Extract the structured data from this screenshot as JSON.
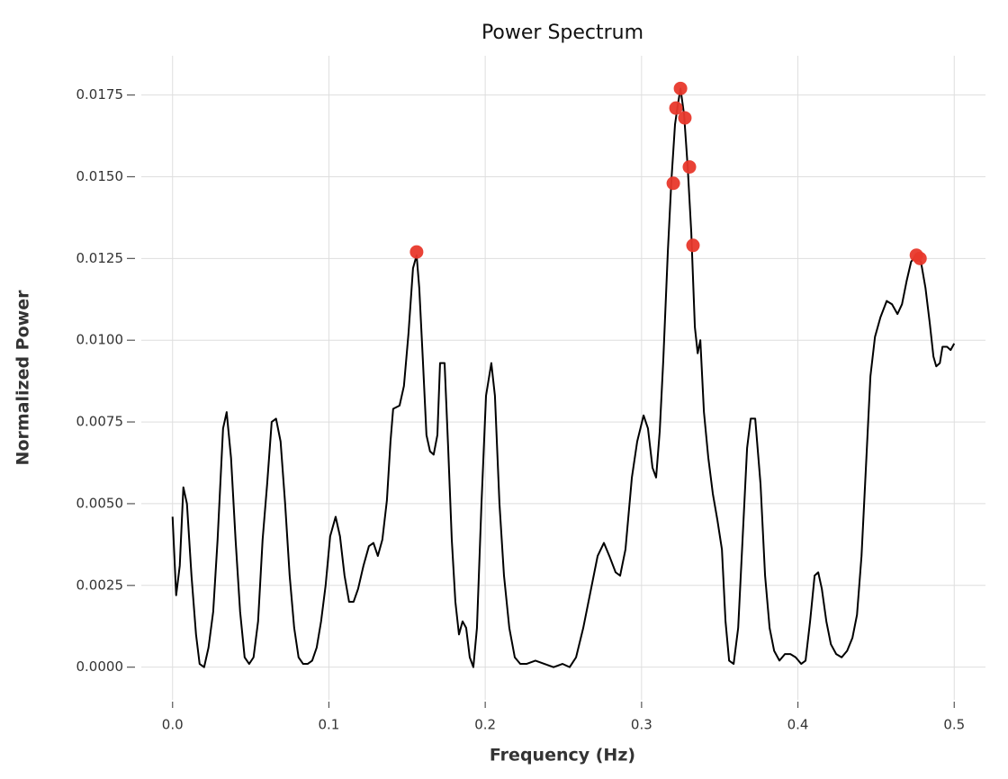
{
  "chart_data": {
    "type": "line",
    "title": "Power Spectrum",
    "xlabel": "Frequency (Hz)",
    "ylabel": "Normalized Power",
    "xlim": [
      -0.02,
      0.52
    ],
    "ylim": [
      -0.001,
      0.0187
    ],
    "xticks": [
      {
        "value": 0,
        "label": "0.0"
      },
      0.1,
      0.2,
      0.3,
      0.4,
      0.5
    ],
    "yticks": [
      {
        "value": 0,
        "label": "0.0000"
      },
      0.0025,
      {
        "value": 0.005,
        "label": "0.0050"
      },
      0.0075,
      {
        "value": 0.01,
        "label": "0.0100"
      },
      0.0125,
      {
        "value": 0.015,
        "label": "0.0150"
      },
      0.0175
    ],
    "grid": true,
    "series": [
      {
        "type": "line",
        "color": "#000000",
        "x": [
          0,
          0.0023,
          0.0046,
          0.0069,
          0.0092,
          0.0121,
          0.015,
          0.0173,
          0.0202,
          0.023,
          0.026,
          0.0288,
          0.0323,
          0.0346,
          0.0374,
          0.0403,
          0.0432,
          0.0461,
          0.049,
          0.0518,
          0.0547,
          0.0576,
          0.0605,
          0.0634,
          0.0662,
          0.0691,
          0.072,
          0.0749,
          0.0778,
          0.0806,
          0.0835,
          0.0864,
          0.0893,
          0.0922,
          0.095,
          0.0979,
          0.1008,
          0.1043,
          0.1071,
          0.11,
          0.1129,
          0.1158,
          0.1187,
          0.1221,
          0.1256,
          0.1285,
          0.1313,
          0.1342,
          0.1371,
          0.1394,
          0.1411,
          0.1452,
          0.148,
          0.1509,
          0.1538,
          0.1561,
          0.1578,
          0.1601,
          0.1624,
          0.1647,
          0.167,
          0.1694,
          0.1711,
          0.174,
          0.1763,
          0.1786,
          0.1809,
          0.1832,
          0.1855,
          0.1878,
          0.1901,
          0.1924,
          0.1947,
          0.1976,
          0.2005,
          0.2039,
          0.2062,
          0.2091,
          0.212,
          0.2154,
          0.2189,
          0.2224,
          0.2264,
          0.2321,
          0.2379,
          0.2437,
          0.2494,
          0.254,
          0.2581,
          0.2627,
          0.2673,
          0.2719,
          0.2759,
          0.2794,
          0.2834,
          0.2863,
          0.2897,
          0.2938,
          0.2972,
          0.3013,
          0.3041,
          0.307,
          0.3093,
          0.3116,
          0.3139,
          0.3168,
          0.3191,
          0.3214,
          0.3232,
          0.3249,
          0.3272,
          0.3295,
          0.3318,
          0.3341,
          0.3359,
          0.3376,
          0.3399,
          0.3427,
          0.3456,
          0.3485,
          0.3514,
          0.3537,
          0.356,
          0.3589,
          0.3618,
          0.3646,
          0.3675,
          0.3698,
          0.3727,
          0.3761,
          0.379,
          0.3819,
          0.3848,
          0.3882,
          0.3917,
          0.3952,
          0.3986,
          0.4021,
          0.4049,
          0.4078,
          0.4107,
          0.413,
          0.4153,
          0.4182,
          0.4211,
          0.4245,
          0.428,
          0.4315,
          0.4349,
          0.4378,
          0.4407,
          0.4435,
          0.4464,
          0.4493,
          0.4528,
          0.4568,
          0.4602,
          0.4637,
          0.4666,
          0.4695,
          0.4724,
          0.4758,
          0.4787,
          0.4816,
          0.4844,
          0.4867,
          0.4885,
          0.4908,
          0.4925,
          0.4954,
          0.4977,
          0.5
        ],
        "values": [
          0.0046,
          0.0022,
          0.0031,
          0.0055,
          0.005,
          0.0028,
          0.001,
          0.0001,
          0,
          0.0006,
          0.0017,
          0.0039,
          0.0073,
          0.0078,
          0.0064,
          0.0039,
          0.0017,
          0.0003,
          0.0001,
          0.0003,
          0.0014,
          0.0039,
          0.0056,
          0.0075,
          0.0076,
          0.0069,
          0.005,
          0.0028,
          0.0012,
          0.0003,
          0.0001,
          0.0001,
          0.0002,
          0.0006,
          0.0014,
          0.0025,
          0.004,
          0.0046,
          0.004,
          0.0028,
          0.002,
          0.002,
          0.0024,
          0.0031,
          0.0037,
          0.0038,
          0.0034,
          0.0039,
          0.0051,
          0.0069,
          0.0079,
          0.008,
          0.0086,
          0.0102,
          0.0122,
          0.0126,
          0.0116,
          0.0094,
          0.0071,
          0.0066,
          0.0065,
          0.0071,
          0.0093,
          0.0093,
          0.0067,
          0.0039,
          0.002,
          0.001,
          0.0014,
          0.0012,
          0.0003,
          0,
          0.0012,
          0.005,
          0.0083,
          0.0093,
          0.0083,
          0.005,
          0.0028,
          0.0012,
          0.0003,
          0.0001,
          0.0001,
          0.0002,
          0.0001,
          0,
          0.0001,
          0,
          0.0003,
          0.0012,
          0.0023,
          0.0034,
          0.0038,
          0.0034,
          0.0029,
          0.0028,
          0.0036,
          0.0058,
          0.0069,
          0.0077,
          0.0073,
          0.0061,
          0.0058,
          0.0072,
          0.0094,
          0.0127,
          0.0149,
          0.0166,
          0.0172,
          0.0177,
          0.0169,
          0.0153,
          0.0133,
          0.0104,
          0.0096,
          0.01,
          0.0078,
          0.0064,
          0.0053,
          0.0045,
          0.0036,
          0.0014,
          0.0002,
          0.0001,
          0.0012,
          0.0039,
          0.0067,
          0.0076,
          0.0076,
          0.0056,
          0.0028,
          0.0012,
          0.0005,
          0.0002,
          0.0004,
          0.0004,
          0.0003,
          0.0001,
          0.0002,
          0.0014,
          0.0028,
          0.0029,
          0.0024,
          0.0014,
          0.0007,
          0.0004,
          0.0003,
          0.0005,
          0.0009,
          0.0016,
          0.0034,
          0.0061,
          0.0089,
          0.0101,
          0.0107,
          0.0112,
          0.0111,
          0.0108,
          0.0111,
          0.0118,
          0.0124,
          0.0126,
          0.0124,
          0.0116,
          0.0105,
          0.0095,
          0.0092,
          0.0093,
          0.0098,
          0.0098,
          0.0097,
          0.0099
        ]
      },
      {
        "type": "scatter",
        "color": "#e8382b",
        "x": [
          0.1561,
          0.3249,
          0.322,
          0.3277,
          0.3306,
          0.3203,
          0.3329,
          0.4758,
          0.4781
        ],
        "values": [
          0.0127,
          0.0177,
          0.0171,
          0.0168,
          0.0153,
          0.0148,
          0.0129,
          0.0126,
          0.0125
        ]
      }
    ]
  }
}
